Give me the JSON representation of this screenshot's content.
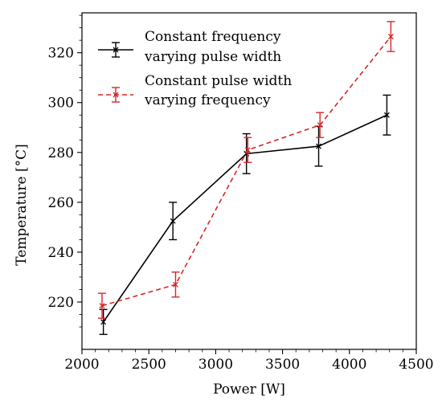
{
  "chart_data": {
    "type": "line",
    "xlabel": "Power [W]",
    "ylabel": "Temperature [°C]",
    "xlim": [
      2000,
      4500
    ],
    "ylim": [
      201,
      336
    ],
    "x_ticks": [
      2000,
      2500,
      3000,
      3500,
      4000,
      4500
    ],
    "y_ticks": [
      220,
      240,
      260,
      280,
      300,
      320
    ],
    "legend_position": "top-left",
    "grid": false,
    "series": [
      {
        "name": "Constant frequency varying pulse width",
        "legend_lines": [
          "Constant frequency",
          "varying pulse width"
        ],
        "color": "#000000",
        "line_style": "solid",
        "marker": "x",
        "x": [
          2160,
          2680,
          3230,
          3770,
          4280
        ],
        "y": [
          212,
          252.5,
          279.5,
          282.5,
          295
        ],
        "yerr": [
          5,
          7.5,
          8,
          8,
          8
        ]
      },
      {
        "name": "Constant pulse width varying frequency",
        "legend_lines": [
          "Constant pulse width",
          "varying frequency"
        ],
        "color": "#d62728",
        "line_style": "dashed",
        "marker": "x",
        "x": [
          2150,
          2700,
          3240,
          3780,
          4310
        ],
        "y": [
          218.5,
          227,
          281,
          291,
          326.5
        ],
        "yerr": [
          5,
          5,
          5,
          5,
          6
        ]
      }
    ]
  }
}
